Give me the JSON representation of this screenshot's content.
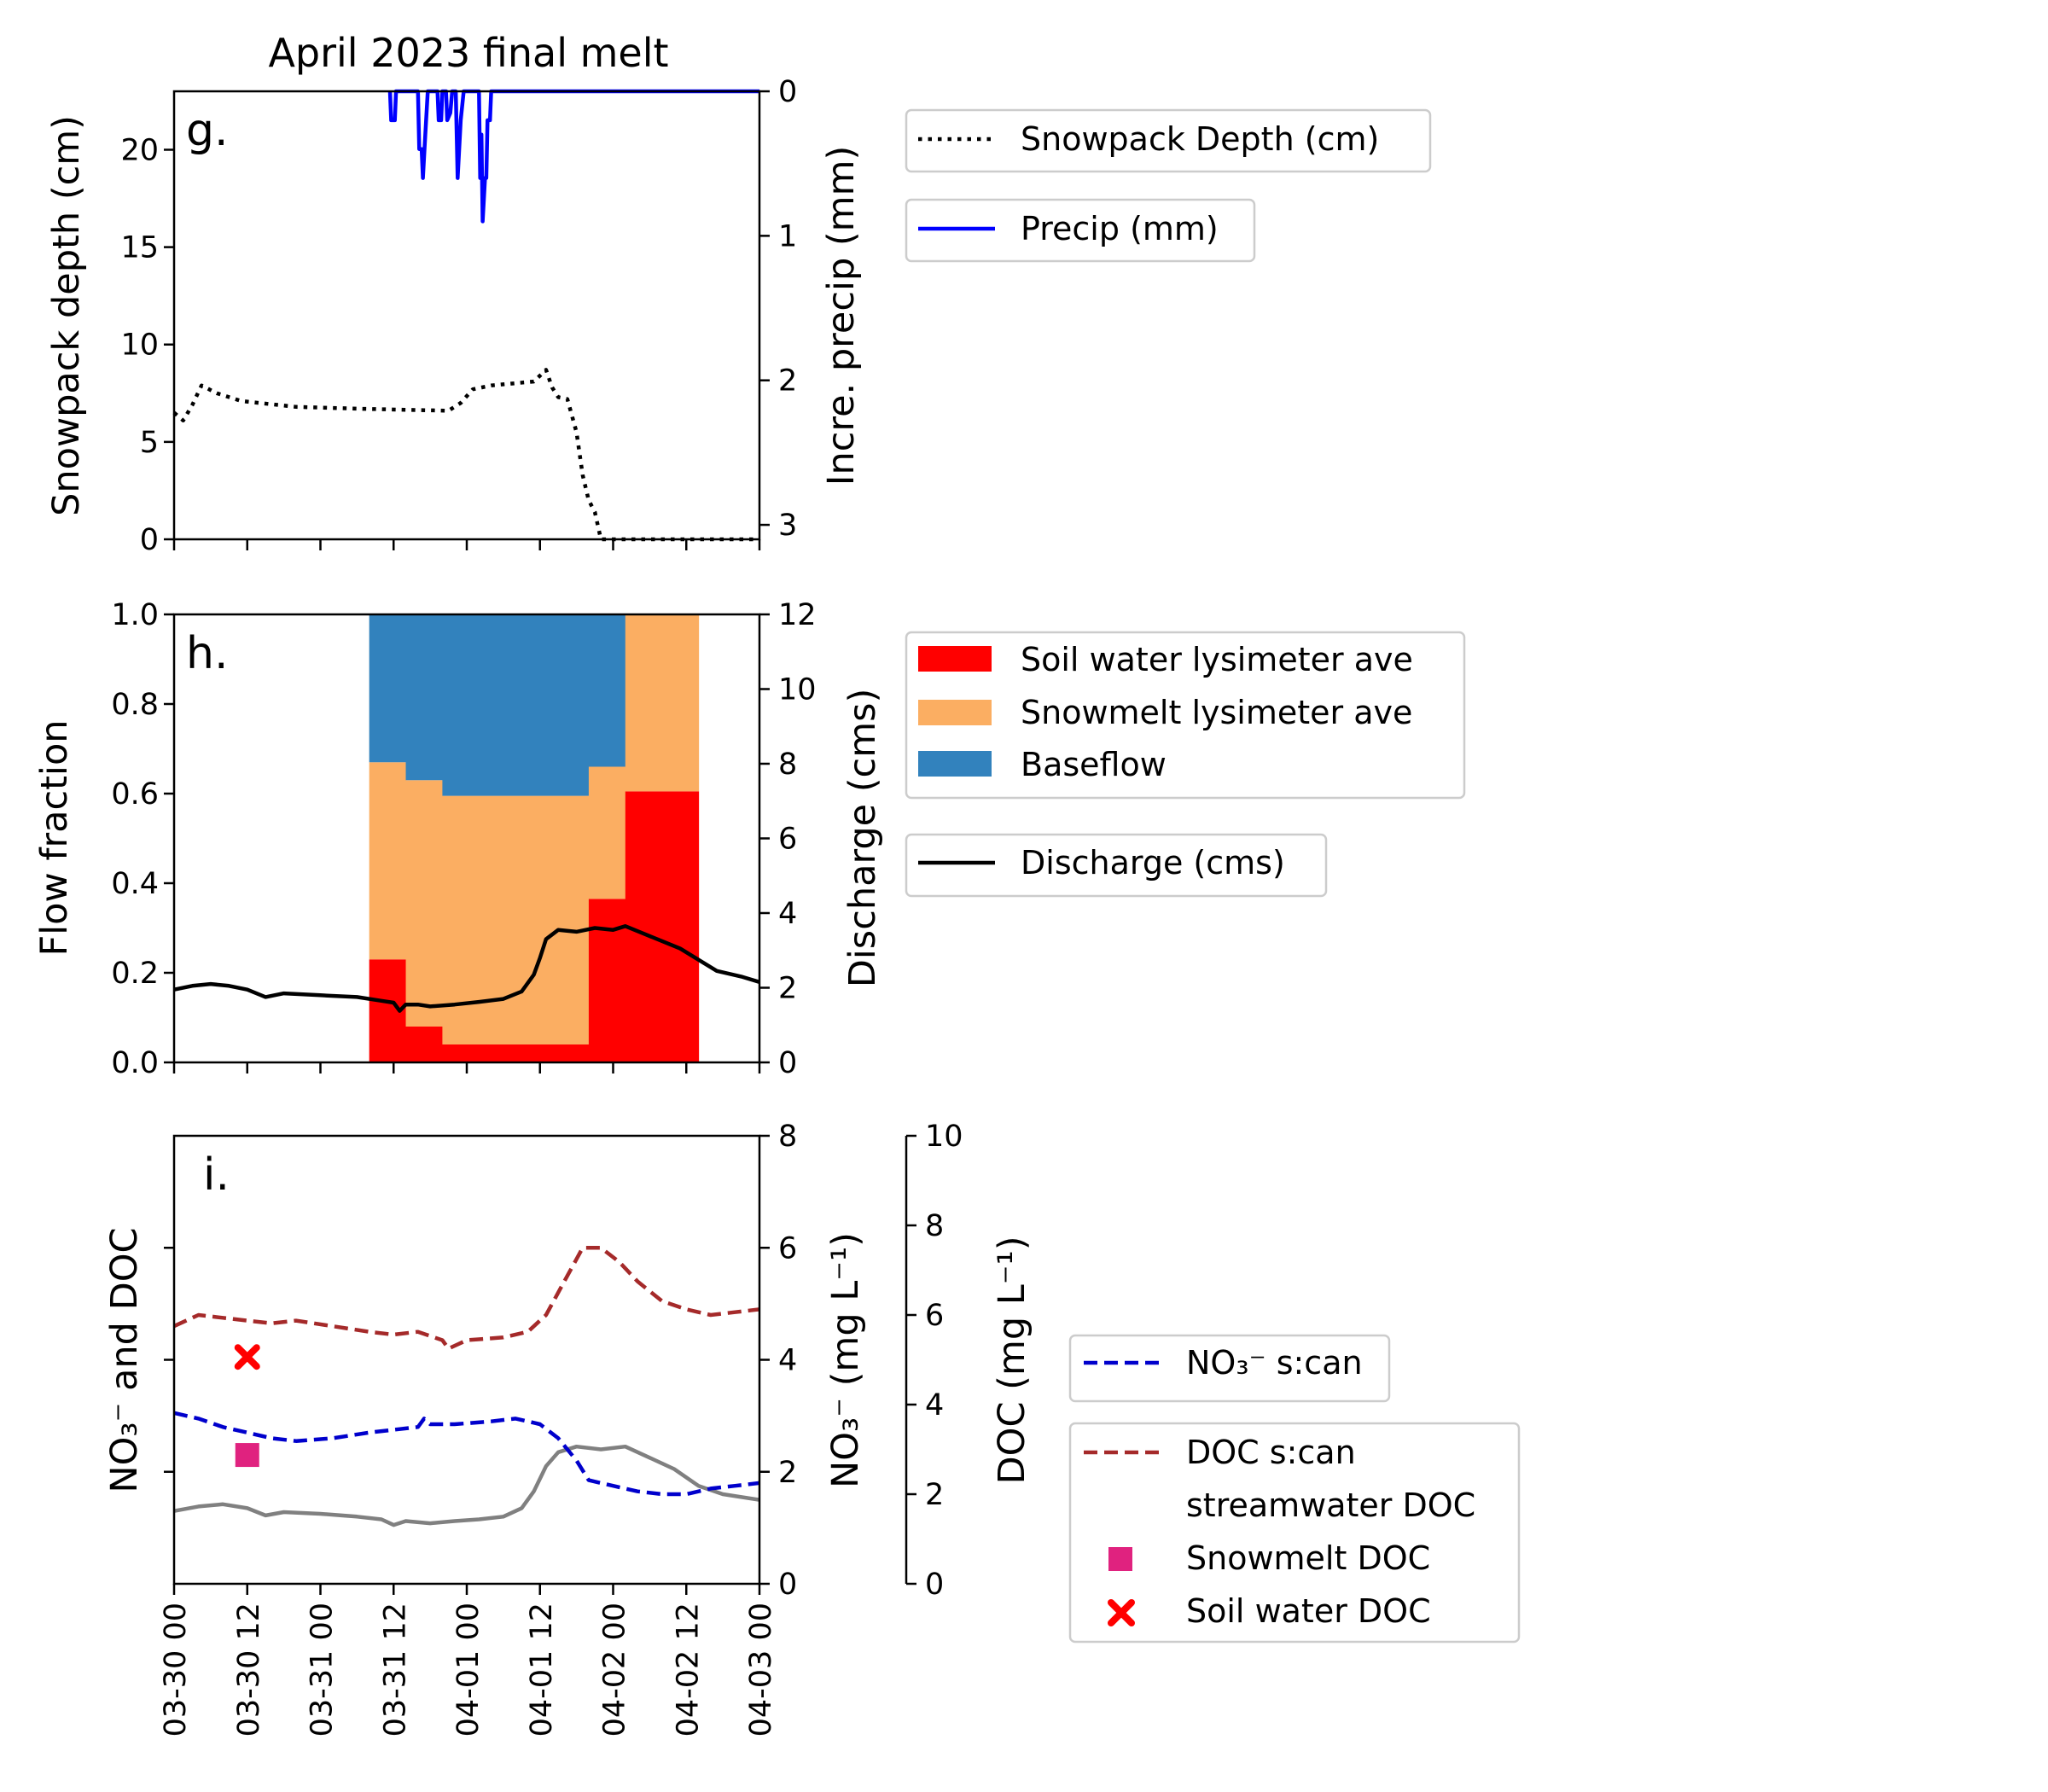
{
  "chart_data": [
    {
      "panel": "g",
      "type": "line",
      "title": "April 2023 final melt",
      "panel_label": "g.",
      "ylabel_left": "Snowpack depth (cm)",
      "ylabel_right": "Incre. precip (mm)",
      "ylim_left": [
        0,
        23
      ],
      "ylim_right": [
        3.1,
        0
      ],
      "yticks_left": [
        "0",
        "5",
        "10",
        "15",
        "20"
      ],
      "yticks_right": [
        "0",
        "1",
        "2",
        "3"
      ],
      "xlim_hours": [
        0,
        96
      ],
      "series": [
        {
          "name": "Snowpack Depth (cm)",
          "axis": "left",
          "color": "#000000",
          "style": "dotted",
          "points": [
            [
              0,
              6.5
            ],
            [
              1.5,
              6.1
            ],
            [
              3,
              6.9
            ],
            [
              4.5,
              7.9
            ],
            [
              7,
              7.5
            ],
            [
              11,
              7.1
            ],
            [
              20,
              6.8
            ],
            [
              31,
              6.7
            ],
            [
              45,
              6.6
            ],
            [
              47,
              7.0
            ],
            [
              49,
              7.7
            ],
            [
              52,
              7.9
            ],
            [
              59,
              8.1
            ],
            [
              61,
              8.7
            ],
            [
              62,
              7.8
            ],
            [
              63,
              7.3
            ],
            [
              64.5,
              7.2
            ],
            [
              66,
              5.5
            ],
            [
              67,
              3.3
            ],
            [
              68,
              2.0
            ],
            [
              69,
              1.4
            ],
            [
              70,
              0
            ],
            [
              96,
              0
            ]
          ]
        },
        {
          "name": "Precip (mm)",
          "axis": "right",
          "color": "#0000ff",
          "style": "solid",
          "points": [
            [
              35.4,
              0
            ],
            [
              35.6,
              0.2
            ],
            [
              36.2,
              0.2
            ],
            [
              36.4,
              0
            ],
            [
              40,
              0
            ],
            [
              40.2,
              0.4
            ],
            [
              40.6,
              0.4
            ],
            [
              40.8,
              0.6
            ],
            [
              41.2,
              0.3
            ],
            [
              41.6,
              0
            ],
            [
              43.2,
              0
            ],
            [
              43.4,
              0.2
            ],
            [
              43.8,
              0.2
            ],
            [
              44,
              0
            ],
            [
              44.6,
              0
            ],
            [
              44.8,
              0.2
            ],
            [
              45.3,
              0.15
            ],
            [
              45.6,
              0
            ],
            [
              46.2,
              0
            ],
            [
              46.5,
              0.6
            ],
            [
              47,
              0.2
            ],
            [
              47.5,
              0
            ],
            [
              50,
              0
            ],
            [
              50.2,
              0.6
            ],
            [
              50.4,
              0.3
            ],
            [
              50.6,
              0.9
            ],
            [
              51,
              0.6
            ],
            [
              51.2,
              0.6
            ],
            [
              51.4,
              0.2
            ],
            [
              51.8,
              0.2
            ],
            [
              52,
              0
            ],
            [
              96,
              0
            ]
          ]
        }
      ]
    },
    {
      "panel": "h",
      "type": "stacked-area",
      "panel_label": "h.",
      "ylabel_left": "Flow fraction",
      "ylabel_right": "Discharge (cms)",
      "ylim_left": [
        0,
        1
      ],
      "ylim_right": [
        0,
        12
      ],
      "yticks_left": [
        "0.0",
        "0.2",
        "0.4",
        "0.6",
        "0.8",
        "1.0"
      ],
      "yticks_right": [
        "0",
        "2",
        "4",
        "6",
        "8",
        "10",
        "12"
      ],
      "xlim_hours": [
        0,
        96
      ],
      "segments": [
        {
          "x0": 32,
          "x1": 38,
          "soil": 0.23,
          "snowmelt": 0.67
        },
        {
          "x0": 38,
          "x1": 44,
          "soil": 0.08,
          "snowmelt": 0.63
        },
        {
          "x0": 44,
          "x1": 68,
          "soil": 0.04,
          "snowmelt": 0.595
        },
        {
          "x0": 68,
          "x1": 74,
          "soil": 0.365,
          "snowmelt": 0.66
        },
        {
          "x0": 74,
          "x1": 86,
          "soil": 0.605,
          "snowmelt": 1.0
        }
      ],
      "series": [
        {
          "name": "Soil water lysimeter ave",
          "color": "#ff0000"
        },
        {
          "name": "Snowmelt lysimeter ave",
          "color": "#fbae62"
        },
        {
          "name": "Baseflow",
          "color": "#3282bd"
        },
        {
          "name": "Discharge (cms)",
          "axis": "right",
          "color": "#000000",
          "style": "solid",
          "points": [
            [
              0,
              1.95
            ],
            [
              3,
              2.05
            ],
            [
              6,
              2.1
            ],
            [
              9,
              2.05
            ],
            [
              12,
              1.95
            ],
            [
              15,
              1.75
            ],
            [
              18,
              1.85
            ],
            [
              24,
              1.8
            ],
            [
              30,
              1.75
            ],
            [
              34,
              1.65
            ],
            [
              36,
              1.6
            ],
            [
              37,
              1.38
            ],
            [
              38,
              1.55
            ],
            [
              40,
              1.55
            ],
            [
              42,
              1.5
            ],
            [
              46,
              1.55
            ],
            [
              50,
              1.62
            ],
            [
              54,
              1.7
            ],
            [
              57,
              1.9
            ],
            [
              59,
              2.35
            ],
            [
              60,
              2.8
            ],
            [
              61,
              3.3
            ],
            [
              63,
              3.55
            ],
            [
              66,
              3.5
            ],
            [
              69,
              3.6
            ],
            [
              72,
              3.55
            ],
            [
              74,
              3.65
            ],
            [
              77,
              3.45
            ],
            [
              80,
              3.25
            ],
            [
              83,
              3.05
            ],
            [
              86,
              2.75
            ],
            [
              89,
              2.45
            ],
            [
              93,
              2.3
            ],
            [
              96,
              2.15
            ]
          ]
        }
      ]
    },
    {
      "panel": "i",
      "type": "line",
      "panel_label": "i.",
      "ylabel_left": "NO₃⁻ and DOC",
      "ylabel_right": "NO₃⁻ (mg L⁻¹)",
      "ylabel_right2": "DOC (mg L⁻¹)",
      "ylim_right": [
        0,
        8
      ],
      "ylim_right2": [
        0,
        10
      ],
      "yticks_right": [
        "0",
        "2",
        "4",
        "6",
        "8"
      ],
      "yticks_right2": [
        "0",
        "2",
        "4",
        "6",
        "8",
        "10"
      ],
      "xlim_hours": [
        0,
        96
      ],
      "xticks": [
        "03-30 00",
        "03-30 12",
        "03-31 00",
        "03-31 12",
        "04-01 00",
        "04-01 12",
        "04-02 00",
        "04-02 12",
        "04-03 00"
      ],
      "series": [
        {
          "name": "NO₃⁻ s:can",
          "axis": "no3",
          "color": "#0000cc",
          "style": "dashed",
          "points": [
            [
              0,
              3.05
            ],
            [
              4,
              2.95
            ],
            [
              8,
              2.8
            ],
            [
              12,
              2.7
            ],
            [
              16,
              2.6
            ],
            [
              20,
              2.55
            ],
            [
              26,
              2.6
            ],
            [
              32,
              2.7
            ],
            [
              36,
              2.75
            ],
            [
              40,
              2.8
            ],
            [
              41,
              2.95
            ],
            [
              42,
              2.85
            ],
            [
              46,
              2.85
            ],
            [
              52,
              2.9
            ],
            [
              56,
              2.95
            ],
            [
              60,
              2.85
            ],
            [
              63,
              2.6
            ],
            [
              66,
              2.2
            ],
            [
              68,
              1.85
            ],
            [
              72,
              1.75
            ],
            [
              76,
              1.65
            ],
            [
              80,
              1.6
            ],
            [
              84,
              1.6
            ],
            [
              88,
              1.7
            ],
            [
              92,
              1.75
            ],
            [
              96,
              1.8
            ]
          ]
        },
        {
          "name": "DOC s:can",
          "axis": "no3",
          "color": "#a52a2a",
          "style": "dashed",
          "points": [
            [
              0,
              4.6
            ],
            [
              4,
              4.8
            ],
            [
              8,
              4.75
            ],
            [
              12,
              4.7
            ],
            [
              16,
              4.65
            ],
            [
              20,
              4.7
            ],
            [
              26,
              4.6
            ],
            [
              32,
              4.5
            ],
            [
              36,
              4.45
            ],
            [
              40,
              4.5
            ],
            [
              44,
              4.35
            ],
            [
              45,
              4.2
            ],
            [
              48,
              4.35
            ],
            [
              54,
              4.4
            ],
            [
              58,
              4.5
            ],
            [
              61,
              4.8
            ],
            [
              64,
              5.4
            ],
            [
              67,
              6.0
            ],
            [
              70,
              6.0
            ],
            [
              73,
              5.75
            ],
            [
              76,
              5.4
            ],
            [
              80,
              5.05
            ],
            [
              84,
              4.9
            ],
            [
              88,
              4.8
            ],
            [
              92,
              4.85
            ],
            [
              96,
              4.9
            ]
          ]
        },
        {
          "name": "streamwater DOC",
          "axis": "no3",
          "color": "#808080",
          "style": "solid",
          "points": [
            [
              0,
              1.3
            ],
            [
              4,
              1.38
            ],
            [
              8,
              1.42
            ],
            [
              12,
              1.35
            ],
            [
              15,
              1.22
            ],
            [
              18,
              1.28
            ],
            [
              24,
              1.25
            ],
            [
              30,
              1.2
            ],
            [
              34,
              1.15
            ],
            [
              36,
              1.05
            ],
            [
              38,
              1.12
            ],
            [
              42,
              1.08
            ],
            [
              46,
              1.12
            ],
            [
              50,
              1.15
            ],
            [
              54,
              1.2
            ],
            [
              57,
              1.35
            ],
            [
              59,
              1.65
            ],
            [
              61,
              2.1
            ],
            [
              63,
              2.35
            ],
            [
              66,
              2.45
            ],
            [
              70,
              2.4
            ],
            [
              74,
              2.45
            ],
            [
              78,
              2.25
            ],
            [
              82,
              2.05
            ],
            [
              86,
              1.75
            ],
            [
              90,
              1.6
            ],
            [
              96,
              1.5
            ]
          ]
        },
        {
          "name": "Snowmelt DOC",
          "axis": "no3",
          "color": "#e0227f",
          "marker": "square",
          "points": [
            [
              12,
              2.3
            ]
          ]
        },
        {
          "name": "Soil water DOC",
          "axis": "no3",
          "color": "#ff0000",
          "marker": "x",
          "points": [
            [
              12,
              4.05
            ]
          ]
        }
      ]
    }
  ],
  "legends": {
    "g": [
      {
        "label": "Snowpack Depth (cm)",
        "color": "#000000",
        "style": "dotted"
      },
      {
        "label": "Precip (mm)",
        "color": "#0000ff",
        "style": "solid"
      }
    ],
    "h_fill": [
      {
        "label": "Soil water lysimeter ave",
        "color": "#ff0000"
      },
      {
        "label": "Snowmelt lysimeter ave",
        "color": "#fbae62"
      },
      {
        "label": "Baseflow",
        "color": "#3282bd"
      }
    ],
    "h_line": [
      {
        "label": "Discharge (cms)",
        "color": "#000000",
        "style": "solid"
      }
    ],
    "i_no3": [
      {
        "label": "NO₃⁻ s:can",
        "color": "#0000cc",
        "style": "dashed"
      }
    ],
    "i_doc": [
      {
        "label": "DOC s:can",
        "color": "#a52a2a",
        "style": "dashed"
      },
      {
        "label": "streamwater DOC",
        "color": "#808080",
        "style": "none"
      },
      {
        "label": "Snowmelt DOC",
        "color": "#e0227f",
        "style": "square"
      },
      {
        "label": "Soil water DOC",
        "color": "#ff0000",
        "style": "x"
      }
    ]
  }
}
